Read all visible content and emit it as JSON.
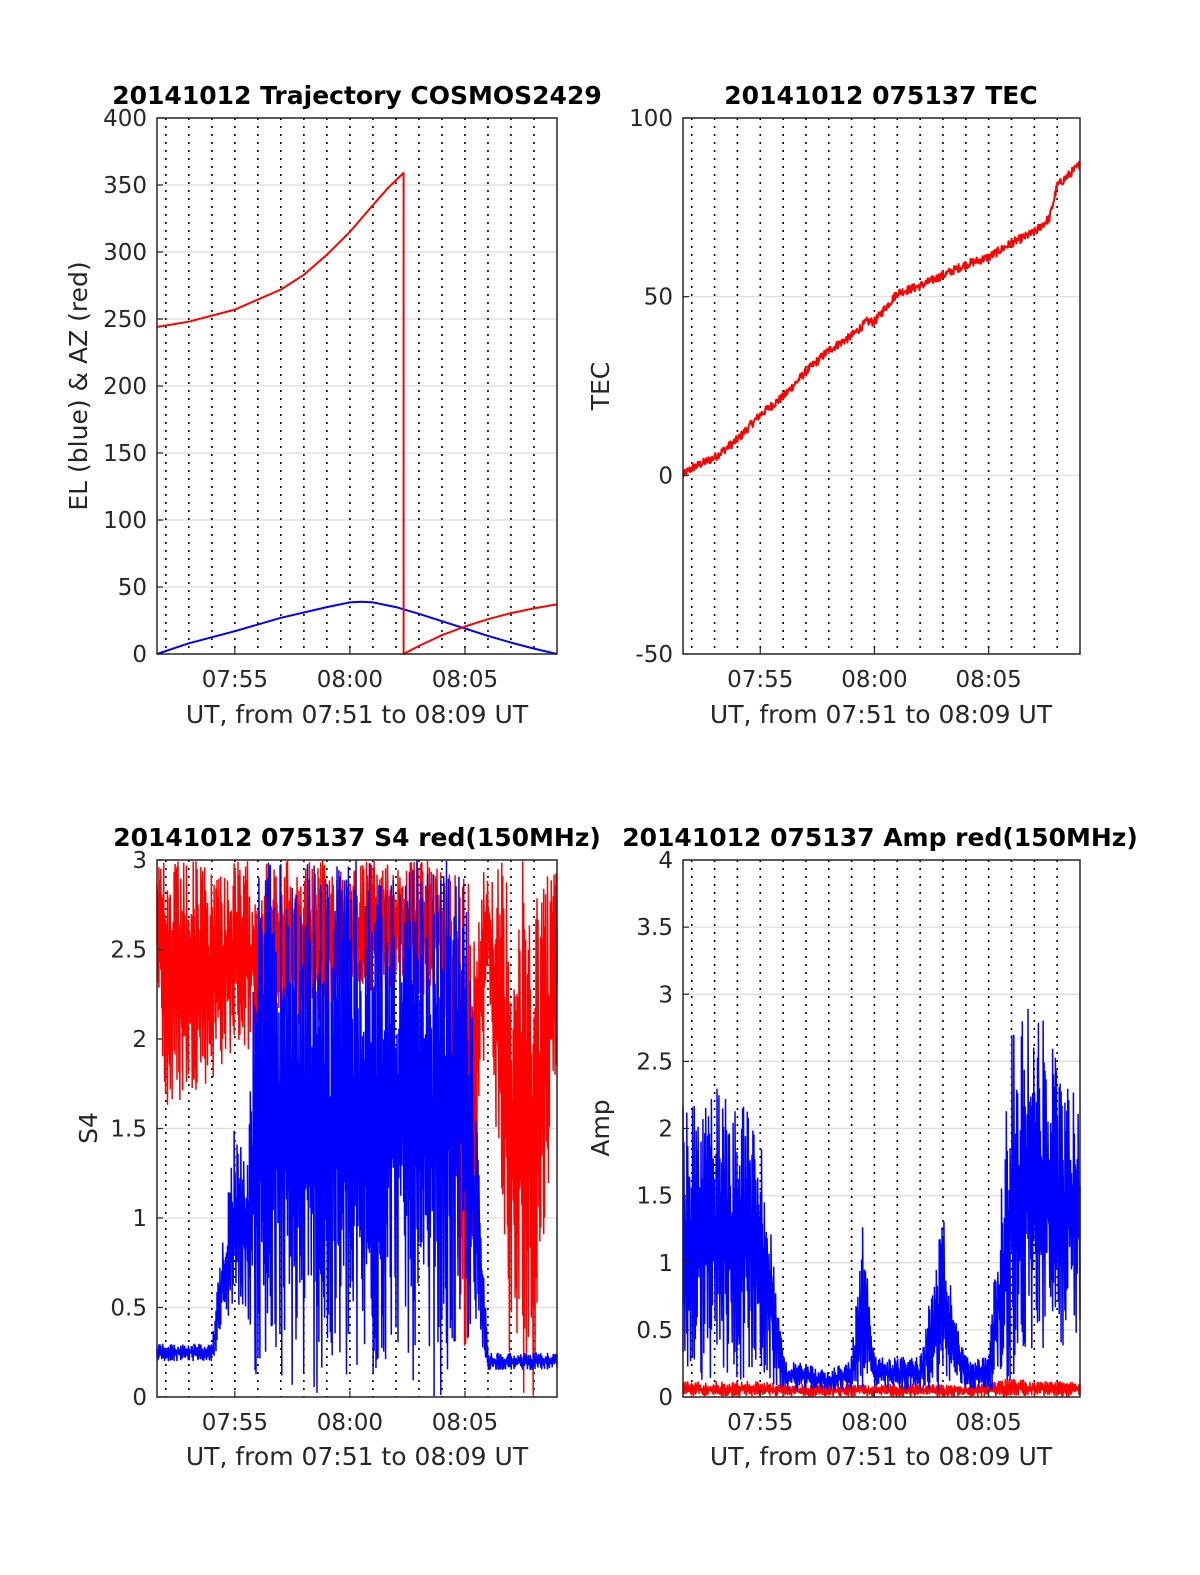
{
  "chart_data": [
    {
      "id": "trajectory",
      "type": "line",
      "title": "20141012 Trajectory COSMOS2429",
      "xlabel": "UT, from 07:51 to 08:09 UT",
      "ylabel": "EL (blue) & AZ (red)",
      "x_unit": "UT time (HH:MM)",
      "xlim": [
        "07:51:37",
        "08:09:00"
      ],
      "ylim": [
        0,
        400
      ],
      "yticks": [
        0,
        50,
        100,
        150,
        200,
        250,
        300,
        350,
        400
      ],
      "xticks": [
        "07:55",
        "08:00",
        "08:05"
      ],
      "grid": "y major gridlines; dotted vertical lines every minute",
      "series": [
        {
          "color": "#0000ff",
          "x": [
            "07:51:37",
            "07:53:00",
            "07:55:00",
            "07:57:00",
            "07:59:00",
            "08:00:00",
            "08:00:30",
            "08:01:00",
            "08:02:00",
            "08:03:00",
            "08:04:00",
            "08:05:00",
            "08:06:00",
            "08:07:00",
            "08:08:00",
            "08:09:00"
          ],
          "y": [
            0,
            8,
            17,
            27,
            35,
            38.5,
            39,
            38.5,
            35,
            30,
            24.5,
            19,
            13.5,
            8.5,
            4,
            0
          ]
        },
        {
          "color": "#ff0000",
          "x": [
            "07:51:37",
            "07:53:00",
            "07:55:00",
            "07:57:00",
            "07:58:00",
            "07:59:00",
            "08:00:00",
            "08:01:00",
            "08:01:40",
            "08:02:20",
            "08:02:20",
            "08:03:00",
            "08:04:00",
            "08:05:00",
            "08:06:00",
            "08:07:00",
            "08:08:00",
            "08:09:00"
          ],
          "y": [
            244,
            248,
            257,
            272,
            283,
            298,
            315,
            335,
            348,
            359,
            0,
            6,
            14,
            20.5,
            26,
            30.5,
            34,
            37
          ]
        }
      ]
    },
    {
      "id": "tec",
      "type": "line",
      "title": "20141012 075137 TEC",
      "xlabel": "UT, from 07:51 to 08:09 UT",
      "ylabel": "TEC",
      "x_unit": "UT time (HH:MM)",
      "xlim": [
        "07:51:37",
        "08:09:00"
      ],
      "ylim": [
        -50,
        100
      ],
      "yticks": [
        -50,
        0,
        50,
        100
      ],
      "xticks": [
        "07:55",
        "08:00",
        "08:05"
      ],
      "grid": "y major gridlines; dotted vertical lines every minute",
      "series": [
        {
          "color": "#ff0000",
          "x": [
            "07:51:37",
            "07:52:00",
            "07:53:00",
            "07:54:00",
            "07:55:00",
            "07:56:00",
            "07:57:00",
            "07:58:00",
            "07:59:00",
            "07:59:40",
            "08:00:00",
            "08:01:00",
            "08:02:00",
            "08:03:00",
            "08:04:00",
            "08:05:00",
            "08:06:00",
            "08:07:00",
            "08:07:40",
            "08:08:00",
            "08:09:00"
          ],
          "y": [
            0,
            2,
            5,
            10,
            17,
            22,
            29,
            35,
            39,
            43,
            43,
            51,
            53,
            56,
            59,
            61,
            65,
            68,
            72,
            81,
            87
          ]
        }
      ]
    },
    {
      "id": "s4",
      "type": "line",
      "title": "20141012 075137 S4 red(150MHz)",
      "xlabel": "UT, from 07:51 to 08:09 UT",
      "ylabel": "S4",
      "x_unit": "UT time (HH:MM)",
      "xlim": [
        "07:51:37",
        "08:09:00"
      ],
      "ylim": [
        0,
        3
      ],
      "yticks": [
        0,
        0.5,
        1,
        1.5,
        2,
        2.5,
        3
      ],
      "xticks": [
        "07:55",
        "08:00",
        "08:05"
      ],
      "grid": "y major gridlines; dotted vertical lines every minute",
      "series": [
        {
          "color": "#ff0000",
          "x": [
            "07:51:37",
            "07:52:00",
            "07:53:00",
            "07:54:00",
            "07:55:00",
            "07:56:00",
            "07:58:00",
            "08:00:00",
            "08:02:00",
            "08:04:00",
            "08:05:00",
            "08:06:00",
            "08:07:00",
            "08:08:00",
            "08:09:00"
          ],
          "y_range": [
            [
              2.4,
              3
            ],
            [
              1.5,
              3
            ],
            [
              1.7,
              3
            ],
            [
              1.75,
              3
            ],
            [
              1.95,
              3
            ],
            [
              1.9,
              3
            ],
            [
              2.0,
              3
            ],
            [
              2.2,
              3
            ],
            [
              2.3,
              3
            ],
            [
              2.2,
              3
            ],
            [
              0,
              3
            ],
            [
              2.3,
              3
            ],
            [
              0,
              3
            ],
            [
              0,
              3
            ],
            [
              1.9,
              3
            ]
          ]
        },
        {
          "color": "#0000ff",
          "x": [
            "07:51:37",
            "07:53:00",
            "07:54:00",
            "07:55:00",
            "07:55:30",
            "07:56:00",
            "07:57:00",
            "07:58:00",
            "07:59:00",
            "08:00:00",
            "08:01:00",
            "08:02:00",
            "08:03:00",
            "08:04:00",
            "08:05:00",
            "08:06:00",
            "08:07:00",
            "08:08:00",
            "08:09:00"
          ],
          "y_range": [
            [
              0.2,
              0.3
            ],
            [
              0.2,
              0.3
            ],
            [
              0.2,
              0.3
            ],
            [
              0.5,
              1.6
            ],
            [
              0.5,
              1.3
            ],
            [
              0,
              3
            ],
            [
              0,
              3
            ],
            [
              0,
              3
            ],
            [
              0,
              3
            ],
            [
              0,
              3
            ],
            [
              0,
              3
            ],
            [
              0.3,
              3
            ],
            [
              0,
              3
            ],
            [
              0,
              3
            ],
            [
              0.3,
              3
            ],
            [
              0.15,
              0.25
            ],
            [
              0.15,
              0.25
            ],
            [
              0.15,
              0.25
            ],
            [
              0.15,
              0.25
            ]
          ]
        }
      ]
    },
    {
      "id": "amp",
      "type": "line",
      "title": "20141012 075137 Amp red(150MHz)",
      "xlabel": "UT, from 07:51 to 08:09 UT",
      "ylabel": "Amp",
      "x_unit": "UT time (HH:MM)",
      "xlim": [
        "07:51:37",
        "08:09:00"
      ],
      "ylim": [
        0,
        4
      ],
      "yticks": [
        0,
        0.5,
        1,
        1.5,
        2,
        2.5,
        3,
        3.5,
        4
      ],
      "xticks": [
        "07:55",
        "08:00",
        "08:05"
      ],
      "grid": "y major gridlines; dotted vertical lines every minute",
      "series": [
        {
          "color": "#ff0000",
          "x": [
            "07:51:37",
            "07:53:00",
            "07:54:00",
            "07:55:00",
            "07:56:00",
            "07:58:00",
            "08:00:00",
            "08:02:00",
            "08:04:00",
            "08:05:00",
            "08:06:00",
            "08:07:00",
            "08:08:00",
            "08:09:00"
          ],
          "y_range": [
            [
              0,
              0.12
            ],
            [
              0,
              0.12
            ],
            [
              0,
              0.12
            ],
            [
              0,
              0.12
            ],
            [
              0,
              0.1
            ],
            [
              0,
              0.1
            ],
            [
              0,
              0.1
            ],
            [
              0,
              0.1
            ],
            [
              0,
              0.1
            ],
            [
              0,
              0.1
            ],
            [
              0,
              0.15
            ],
            [
              0,
              0.12
            ],
            [
              0,
              0.12
            ],
            [
              0,
              0.12
            ]
          ]
        },
        {
          "color": "#0000ff",
          "x": [
            "07:51:37",
            "07:53:00",
            "07:54:00",
            "07:55:00",
            "07:56:00",
            "07:58:00",
            "07:59:00",
            "07:59:30",
            "08:00:00",
            "08:01:00",
            "08:02:00",
            "08:03:00",
            "08:03:30",
            "08:04:00",
            "08:05:00",
            "08:06:00",
            "08:07:00",
            "08:08:00",
            "08:09:00"
          ],
          "y_range": [
            [
              0.1,
              2.2
            ],
            [
              0.1,
              2.3
            ],
            [
              0.1,
              2.3
            ],
            [
              0.1,
              2.1
            ],
            [
              0.05,
              0.3
            ],
            [
              0.05,
              0.2
            ],
            [
              0.05,
              0.3
            ],
            [
              0.05,
              1.5
            ],
            [
              0.05,
              0.3
            ],
            [
              0.05,
              0.3
            ],
            [
              0.05,
              0.3
            ],
            [
              0.05,
              1.4
            ],
            [
              0.1,
              0.6
            ],
            [
              0.05,
              0.3
            ],
            [
              0.05,
              0.3
            ],
            [
              0.1,
              2.7
            ],
            [
              0.3,
              3.0
            ],
            [
              0.3,
              2.5
            ],
            [
              0.5,
              2.2
            ]
          ]
        }
      ]
    }
  ]
}
